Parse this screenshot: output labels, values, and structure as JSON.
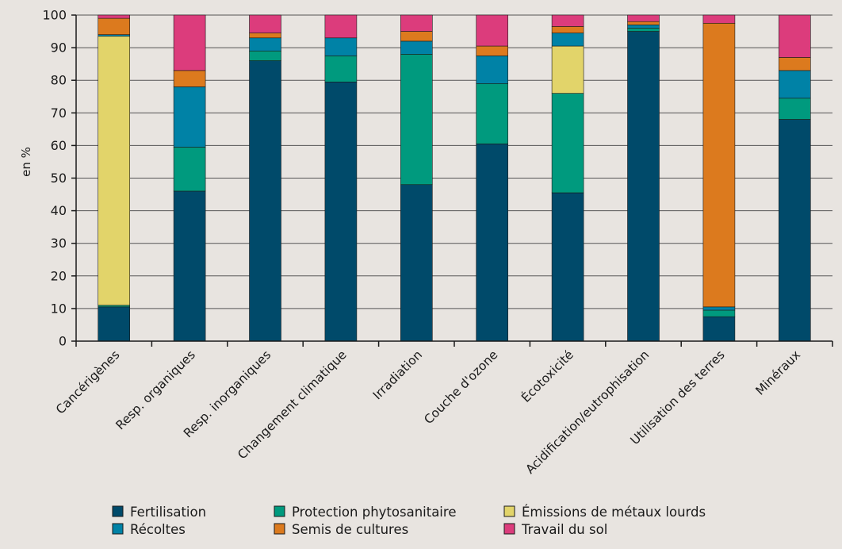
{
  "chart_data": {
    "type": "bar",
    "stacked": true,
    "title": "",
    "xlabel": "",
    "ylabel": "en %",
    "ylim": [
      0,
      100
    ],
    "yticks": [
      0,
      10,
      20,
      30,
      40,
      50,
      60,
      70,
      80,
      90,
      100
    ],
    "grid": "horizontal",
    "legend_position": "bottom",
    "categories": [
      "Cancérigènes",
      "Resp. organiques",
      "Resp. inorganiques",
      "Changement climatique",
      "Irradiation",
      "Couche d'ozone",
      "Écotoxicité",
      "Acidification/eutrophisation",
      "Utilisation des terres",
      "Minéraux"
    ],
    "series": [
      {
        "name": "Fertilisation",
        "color": "#004a6a",
        "values": [
          10.5,
          46,
          86,
          79.5,
          48,
          60.5,
          45.5,
          95,
          7.5,
          68
        ]
      },
      {
        "name": "Protection phytosanitaire",
        "color": "#009a7e",
        "values": [
          0.5,
          13.5,
          3,
          8,
          40,
          18.5,
          30.5,
          1,
          2,
          6.5
        ]
      },
      {
        "name": "Émissions de métaux lourds",
        "color": "#e2d46a",
        "values": [
          82.5,
          0,
          0,
          0,
          0,
          0,
          14.5,
          0,
          0,
          0
        ]
      },
      {
        "name": "Récoltes",
        "color": "#0082a6",
        "values": [
          0.5,
          18.5,
          4,
          5.5,
          4,
          8.5,
          4,
          1,
          1,
          8.5
        ]
      },
      {
        "name": "Semis de cultures",
        "color": "#dc7a1e",
        "values": [
          5,
          5,
          1.5,
          0,
          3,
          3,
          2,
          1,
          87,
          4
        ]
      },
      {
        "name": "Travail du sol",
        "color": "#dc3c7c",
        "values": [
          1,
          17,
          5.5,
          7,
          5,
          9.5,
          3.5,
          2,
          2.5,
          13
        ]
      }
    ]
  }
}
